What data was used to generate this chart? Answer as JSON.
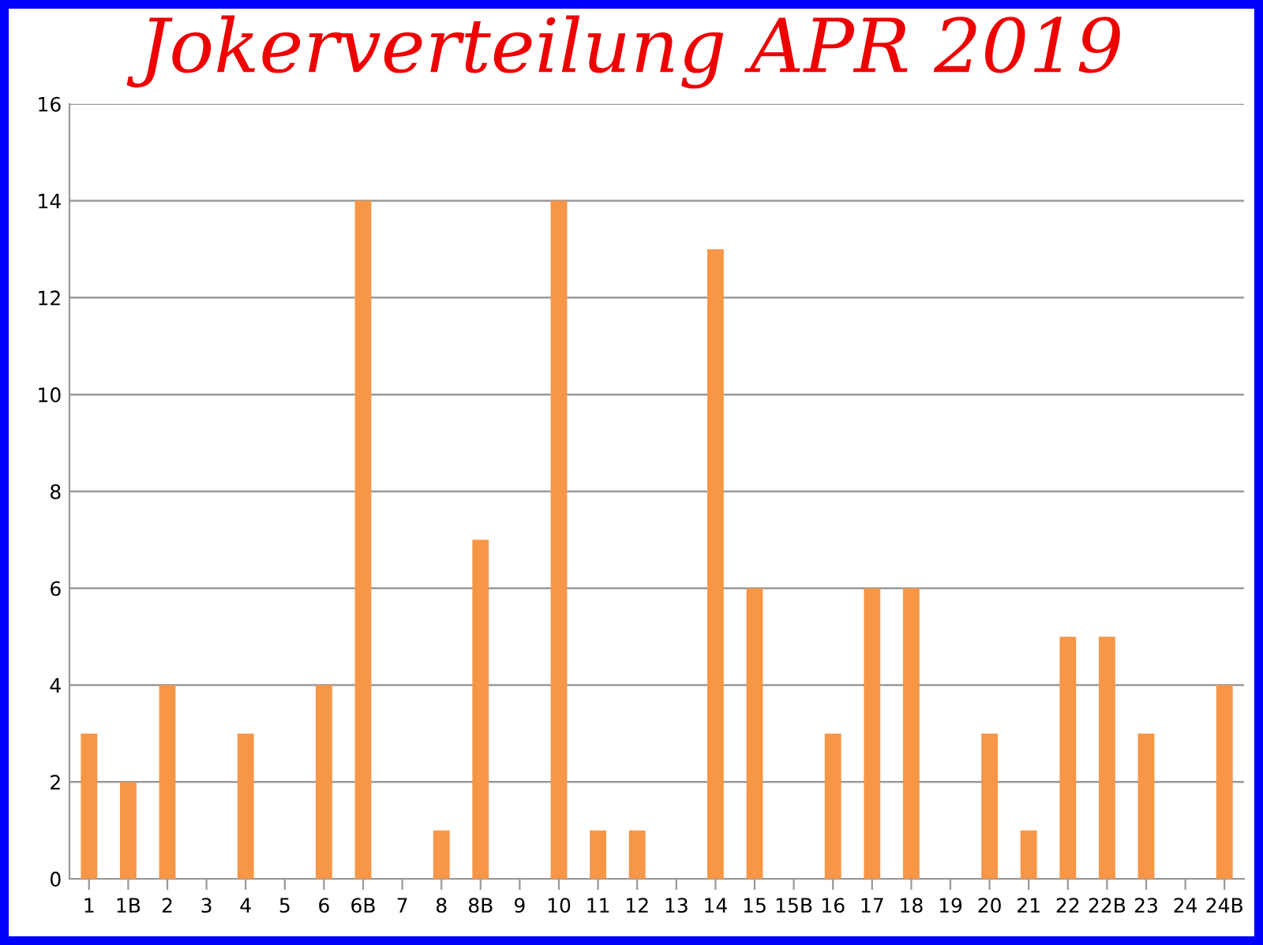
{
  "chart_data": {
    "type": "bar",
    "title": "Jokerverteilung APR 2019",
    "categories": [
      "1",
      "1B",
      "2",
      "3",
      "4",
      "5",
      "6",
      "6B",
      "7",
      "8",
      "8B",
      "9",
      "10",
      "11",
      "12",
      "13",
      "14",
      "15",
      "15B",
      "16",
      "17",
      "18",
      "19",
      "20",
      "21",
      "22",
      "22B",
      "23",
      "24",
      "24B"
    ],
    "values": [
      3,
      2,
      4,
      0,
      3,
      0,
      4,
      14,
      0,
      1,
      7,
      0,
      14,
      1,
      1,
      0,
      13,
      6,
      0,
      3,
      6,
      6,
      0,
      3,
      1,
      5,
      5,
      3,
      0,
      4
    ],
    "color": "#f79646",
    "ylim": [
      0,
      16
    ],
    "yticks": [
      0,
      2,
      4,
      6,
      8,
      10,
      12,
      14,
      16
    ],
    "grid": "y",
    "legend": false
  }
}
